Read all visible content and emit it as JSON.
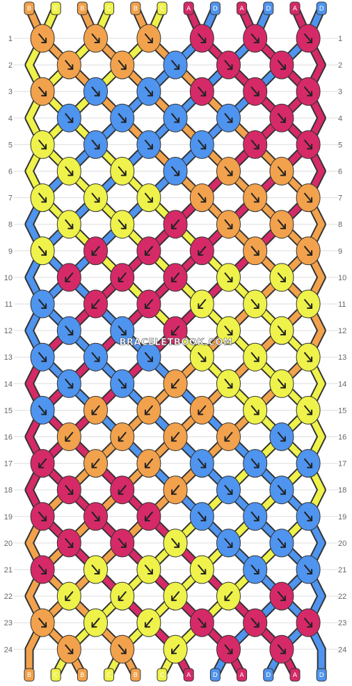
{
  "colors": {
    "A": "#d52a67",
    "B": "#f2a24c",
    "C": "#eef24a",
    "D": "#4f94ee",
    "outline": "#333333",
    "grid": "#dddddd",
    "number": "#666666",
    "arrow": "#222222"
  },
  "start_strands": [
    "B",
    "C",
    "B",
    "C",
    "B",
    "C",
    "A",
    "D",
    "A",
    "D",
    "A",
    "D"
  ],
  "end_strands": [
    "B",
    "C",
    "B",
    "C",
    "B",
    "C",
    "A",
    "D",
    "A",
    "D",
    "A",
    "D"
  ],
  "row_numbers": [
    "1",
    "2",
    "3",
    "4",
    "5",
    "6",
    "7",
    "8",
    "9",
    "10",
    "11",
    "12",
    "13",
    "14",
    "15",
    "16",
    "17",
    "18",
    "19",
    "20",
    "21",
    "22",
    "23",
    "24"
  ],
  "knots": [
    [
      "B",
      "B",
      "B",
      "A",
      "A",
      "A"
    ],
    [
      "B",
      "B",
      "D",
      "A",
      "A"
    ],
    [
      "B",
      "D",
      "D",
      "A",
      "A",
      "A"
    ],
    [
      "D",
      "D",
      "D",
      "D",
      "A"
    ],
    [
      "C",
      "D",
      "D",
      "D",
      "A",
      "A"
    ],
    [
      "C",
      "C",
      "D",
      "B",
      "B"
    ],
    [
      "C",
      "C",
      "C",
      "B",
      "B",
      "B"
    ],
    [
      "C",
      "C",
      "A",
      "B",
      "B"
    ],
    [
      "C",
      "A",
      "A",
      "A",
      "B",
      "B"
    ],
    [
      "A",
      "A",
      "A",
      "C",
      "C"
    ],
    [
      "D",
      "A",
      "A",
      "C",
      "C",
      "C"
    ],
    [
      "D",
      "D",
      "A",
      "C",
      "C"
    ],
    [
      "D",
      "D",
      "D",
      "C",
      "C",
      "C"
    ],
    [
      "D",
      "D",
      "B",
      "C",
      "C"
    ],
    [
      "D",
      "B",
      "B",
      "B",
      "C",
      "C"
    ],
    [
      "B",
      "B",
      "B",
      "B",
      "D"
    ],
    [
      "A",
      "B",
      "B",
      "D",
      "D",
      "D"
    ],
    [
      "A",
      "A",
      "B",
      "D",
      "D"
    ],
    [
      "A",
      "A",
      "A",
      "D",
      "D",
      "D"
    ],
    [
      "A",
      "A",
      "C",
      "D",
      "D"
    ],
    [
      "A",
      "C",
      "C",
      "C",
      "D",
      "D"
    ],
    [
      "C",
      "C",
      "C",
      "C",
      "A"
    ],
    [
      "B",
      "C",
      "C",
      "A",
      "A",
      "A"
    ],
    [
      "B",
      "B",
      "C",
      "A",
      "A"
    ]
  ],
  "directions": [
    [
      "se",
      "se",
      "se",
      "se",
      "se",
      "se"
    ],
    [
      "se",
      "se",
      "se",
      "se",
      "se"
    ],
    [
      "se",
      "se",
      "se",
      "se",
      "se",
      "se"
    ],
    [
      "se",
      "se",
      "se",
      "se",
      "se"
    ],
    [
      "se",
      "se",
      "se",
      "se",
      "se",
      "se"
    ],
    [
      "se",
      "se",
      "se",
      "se",
      "se"
    ],
    [
      "se",
      "se",
      "se",
      "se",
      "se",
      "se"
    ],
    [
      "se",
      "se",
      "sw",
      "se",
      "se"
    ],
    [
      "se",
      "sw",
      "sw",
      "sw",
      "se",
      "se"
    ],
    [
      "sw",
      "sw",
      "sw",
      "se",
      "se"
    ],
    [
      "se",
      "sw",
      "sw",
      "sw",
      "se",
      "se"
    ],
    [
      "se",
      "se",
      "sw",
      "se",
      "se"
    ],
    [
      "se",
      "se",
      "se",
      "se",
      "se",
      "se"
    ],
    [
      "se",
      "se",
      "sw",
      "se",
      "se"
    ],
    [
      "se",
      "sw",
      "sw",
      "sw",
      "se",
      "se"
    ],
    [
      "sw",
      "sw",
      "sw",
      "sw",
      "se"
    ],
    [
      "sw",
      "sw",
      "sw",
      "se",
      "se",
      "se"
    ],
    [
      "se",
      "sw",
      "sw",
      "se",
      "se"
    ],
    [
      "se",
      "se",
      "sw",
      "se",
      "se",
      "se"
    ],
    [
      "se",
      "se",
      "se",
      "se",
      "se"
    ],
    [
      "se",
      "se",
      "se",
      "se",
      "se",
      "se"
    ],
    [
      "sw",
      "sw",
      "sw",
      "sw",
      "se"
    ],
    [
      "se",
      "sw",
      "sw",
      "se",
      "se",
      "se"
    ],
    [
      "se",
      "se",
      "sw",
      "se",
      "se"
    ]
  ],
  "watermark": "BRACELETBOOK.COM"
}
